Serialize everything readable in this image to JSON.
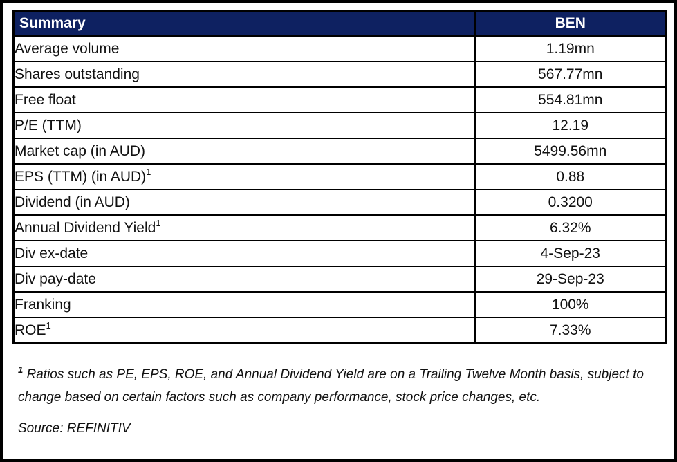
{
  "table": {
    "header": {
      "label": "Summary",
      "value": "BEN"
    },
    "rows": [
      {
        "label": "Average volume",
        "sup": "",
        "value": "1.19mn"
      },
      {
        "label": "Shares outstanding",
        "sup": "",
        "value": "567.77mn"
      },
      {
        "label": "Free float",
        "sup": "",
        "value": "554.81mn"
      },
      {
        "label": "P/E (TTM)",
        "sup": "",
        "value": "12.19"
      },
      {
        "label": "Market cap (in AUD)",
        "sup": "",
        "value": "5499.56mn"
      },
      {
        "label": "EPS (TTM) (in AUD)",
        "sup": "1",
        "value": "0.88"
      },
      {
        "label": "Dividend (in AUD)",
        "sup": "",
        "value": "0.3200"
      },
      {
        "label": "Annual Dividend Yield",
        "sup": "1",
        "value": "6.32%"
      },
      {
        "label": "Div ex-date",
        "sup": "",
        "value": "4-Sep-23"
      },
      {
        "label": "Div pay-date",
        "sup": "",
        "value": "29-Sep-23"
      },
      {
        "label": "Franking",
        "sup": "",
        "value": "100%"
      },
      {
        "label": "ROE",
        "sup": "1",
        "value": "7.33%"
      }
    ]
  },
  "footnote": {
    "marker": "1",
    "text": " Ratios such as PE, EPS, ROE, and Annual Dividend Yield are on a Trailing Twelve Month basis, subject to change based on certain factors such as company performance, stock price changes, etc.",
    "source": "Source: REFINITIV"
  },
  "colors": {
    "header_bg": "#0e2161",
    "header_text": "#ffffff",
    "border": "#000000",
    "body_text": "#111111"
  }
}
